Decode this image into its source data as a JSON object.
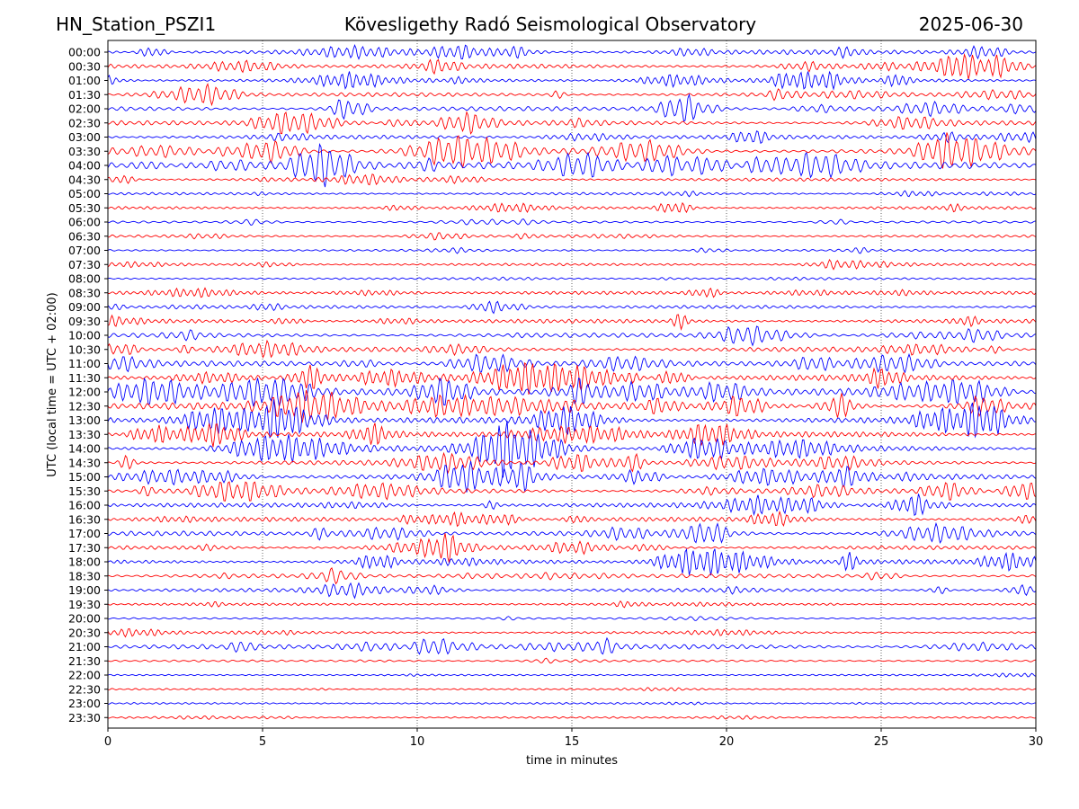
{
  "header": {
    "station": "HN_Station_PSZI1",
    "observatory": "Kövesligethy Radó Seismological Observatory",
    "date": "2025-06-30"
  },
  "chart_data": {
    "type": "line",
    "subtype": "helicorder",
    "title": "Kövesligethy Radó Seismological Observatory",
    "xlabel": "time in minutes",
    "ylabel": "UTC (local time = UTC + 02:00)",
    "xlim": [
      0,
      30
    ],
    "x_ticks": [
      "0",
      "5",
      "10",
      "15",
      "20",
      "25",
      "30"
    ],
    "x_tick_values": [
      0,
      5,
      10,
      15,
      20,
      25,
      30
    ],
    "grid": "vertical dotted lines at 5-minute ticks",
    "line_colors": [
      "#0000ff",
      "#ff0000"
    ],
    "color_rule": "alternating blue (hh:00) and red (hh:30)",
    "rows": [
      {
        "label": "00:00",
        "activity": 1.0
      },
      {
        "label": "00:30",
        "activity": 1.0
      },
      {
        "label": "01:00",
        "activity": 0.9
      },
      {
        "label": "01:30",
        "activity": 0.8
      },
      {
        "label": "02:00",
        "activity": 0.9
      },
      {
        "label": "02:30",
        "activity": 0.9
      },
      {
        "label": "03:00",
        "activity": 0.8
      },
      {
        "label": "03:30",
        "activity": 1.3
      },
      {
        "label": "04:00",
        "activity": 1.5
      },
      {
        "label": "04:30",
        "activity": 0.6
      },
      {
        "label": "05:00",
        "activity": 0.4
      },
      {
        "label": "05:30",
        "activity": 0.5
      },
      {
        "label": "06:00",
        "activity": 0.3
      },
      {
        "label": "06:30",
        "activity": 0.4
      },
      {
        "label": "07:00",
        "activity": 0.3
      },
      {
        "label": "07:30",
        "activity": 0.4
      },
      {
        "label": "08:00",
        "activity": 0.25
      },
      {
        "label": "08:30",
        "activity": 0.6
      },
      {
        "label": "09:00",
        "activity": 0.6
      },
      {
        "label": "09:30",
        "activity": 0.8
      },
      {
        "label": "10:00",
        "activity": 0.9
      },
      {
        "label": "10:30",
        "activity": 1.0
      },
      {
        "label": "11:00",
        "activity": 1.2
      },
      {
        "label": "11:30",
        "activity": 1.4
      },
      {
        "label": "12:00",
        "activity": 1.6
      },
      {
        "label": "12:30",
        "activity": 1.6
      },
      {
        "label": "13:00",
        "activity": 1.3
      },
      {
        "label": "13:30",
        "activity": 1.2
      },
      {
        "label": "14:00",
        "activity": 1.2
      },
      {
        "label": "14:30",
        "activity": 1.0
      },
      {
        "label": "15:00",
        "activity": 1.3
      },
      {
        "label": "15:30",
        "activity": 1.1
      },
      {
        "label": "16:00",
        "activity": 0.9
      },
      {
        "label": "16:30",
        "activity": 0.9
      },
      {
        "label": "17:00",
        "activity": 1.0
      },
      {
        "label": "17:30",
        "activity": 0.8
      },
      {
        "label": "18:00",
        "activity": 0.9
      },
      {
        "label": "18:30",
        "activity": 0.8
      },
      {
        "label": "19:00",
        "activity": 0.7
      },
      {
        "label": "19:30",
        "activity": 0.4
      },
      {
        "label": "20:00",
        "activity": 0.15
      },
      {
        "label": "20:30",
        "activity": 0.4
      },
      {
        "label": "21:00",
        "activity": 1.0
      },
      {
        "label": "21:30",
        "activity": 0.25
      },
      {
        "label": "22:00",
        "activity": 0.15
      },
      {
        "label": "22:30",
        "activity": 0.15
      },
      {
        "label": "23:00",
        "activity": 0.2
      },
      {
        "label": "23:30",
        "activity": 0.2
      }
    ]
  }
}
